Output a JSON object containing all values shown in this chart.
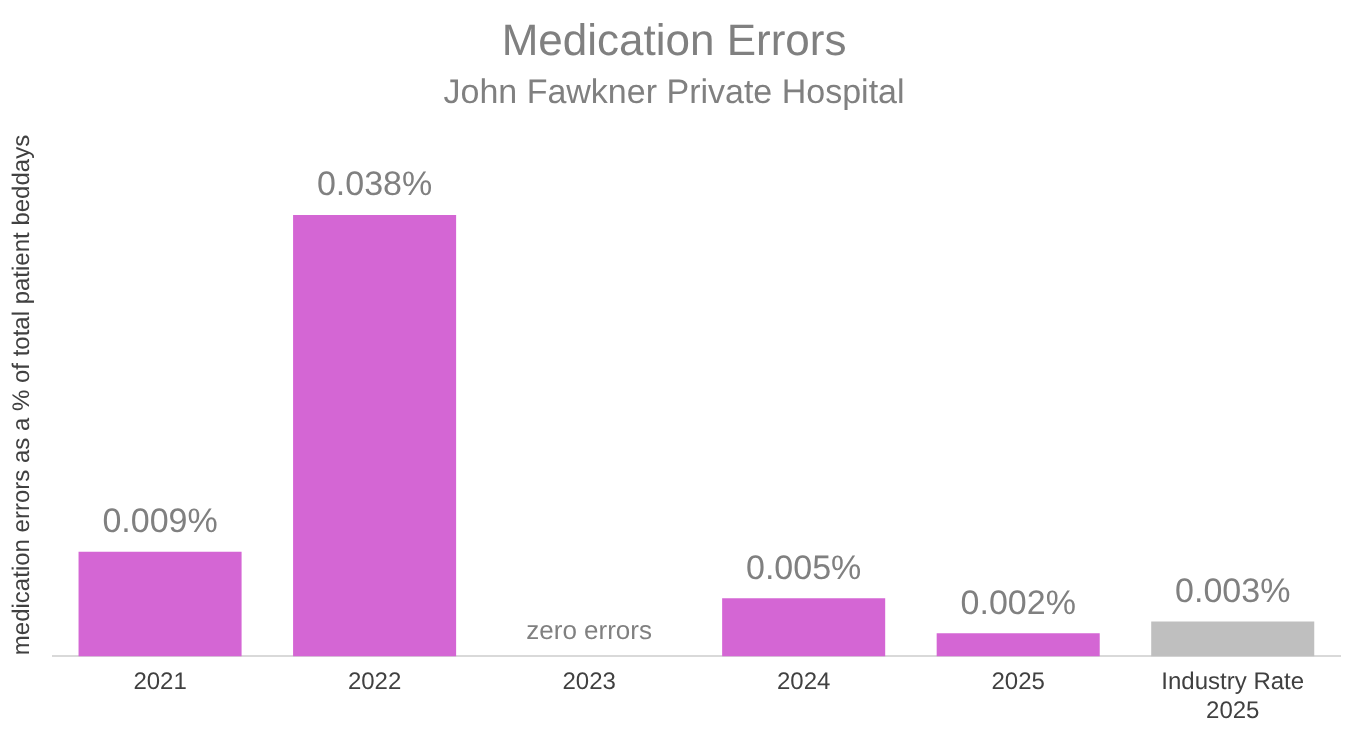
{
  "chart_data": {
    "type": "bar",
    "title": "Medication Errors",
    "subtitle": "John Fawkner Private Hospital",
    "ylabel": "medication errors as a % of total patient beddays",
    "categories": [
      "2021",
      "2022",
      "2023",
      "2024",
      "2025",
      "Industry Rate 2025"
    ],
    "values": [
      0.009,
      0.038,
      0,
      0.005,
      0.002,
      0.003
    ],
    "colors": [
      "#d466d4",
      "#d466d4",
      "#d466d4",
      "#d466d4",
      "#d466d4",
      "#bfbfbf"
    ],
    "value_labels": [
      "0.009%",
      "0.038%",
      "zero errors",
      "0.005%",
      "0.002%",
      "0.003%"
    ],
    "grid": false,
    "legend": false
  }
}
